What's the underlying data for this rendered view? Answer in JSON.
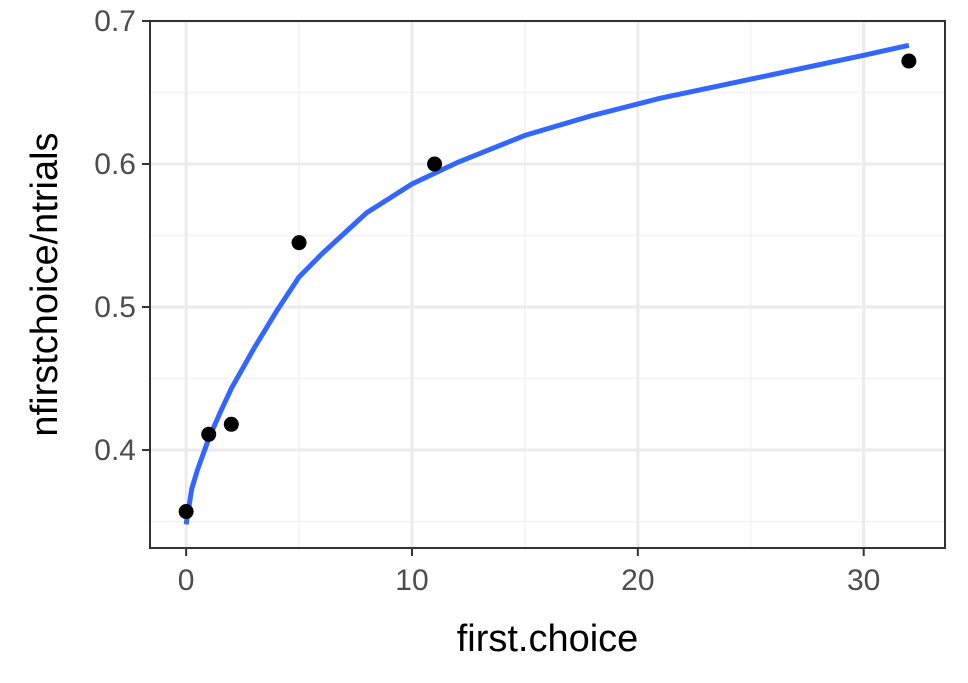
{
  "chart_data": {
    "type": "scatter",
    "title": "",
    "xlabel": "first.choice",
    "ylabel": "nfirstchoice/ntrials",
    "xlim": [
      -1.6,
      33.6
    ],
    "ylim": [
      0.3315,
      0.7
    ],
    "x_ticks": [
      0,
      10,
      20,
      30
    ],
    "y_ticks": [
      0.4,
      0.5,
      0.6,
      0.7
    ],
    "x_tick_labels": [
      "0",
      "10",
      "20",
      "30"
    ],
    "y_tick_labels": [
      "0.4",
      "0.5",
      "0.6",
      "0.7"
    ],
    "grid": true,
    "points": [
      {
        "x": 0,
        "y": 0.357
      },
      {
        "x": 1,
        "y": 0.411
      },
      {
        "x": 2,
        "y": 0.418
      },
      {
        "x": 5,
        "y": 0.545
      },
      {
        "x": 11,
        "y": 0.6
      },
      {
        "x": 32,
        "y": 0.672
      }
    ],
    "fit": {
      "type": "line",
      "x": [
        0,
        0.25,
        0.5,
        1,
        1.5,
        2,
        3,
        4,
        5,
        6,
        8,
        10,
        12,
        15,
        18,
        21,
        24,
        27,
        30,
        32
      ],
      "y": [
        0.348,
        0.373,
        0.386,
        0.408,
        0.426,
        0.443,
        0.471,
        0.497,
        0.521,
        0.537,
        0.566,
        0.586,
        0.601,
        0.62,
        0.634,
        0.646,
        0.656,
        0.666,
        0.676,
        0.683
      ]
    },
    "colors": {
      "points": "#000000",
      "fit_line": "#3366FF",
      "grid_major": "#ebebeb",
      "grid_minor": "#f2f2f2",
      "panel_border": "#333333",
      "tick_text": "#4d4d4d"
    }
  }
}
